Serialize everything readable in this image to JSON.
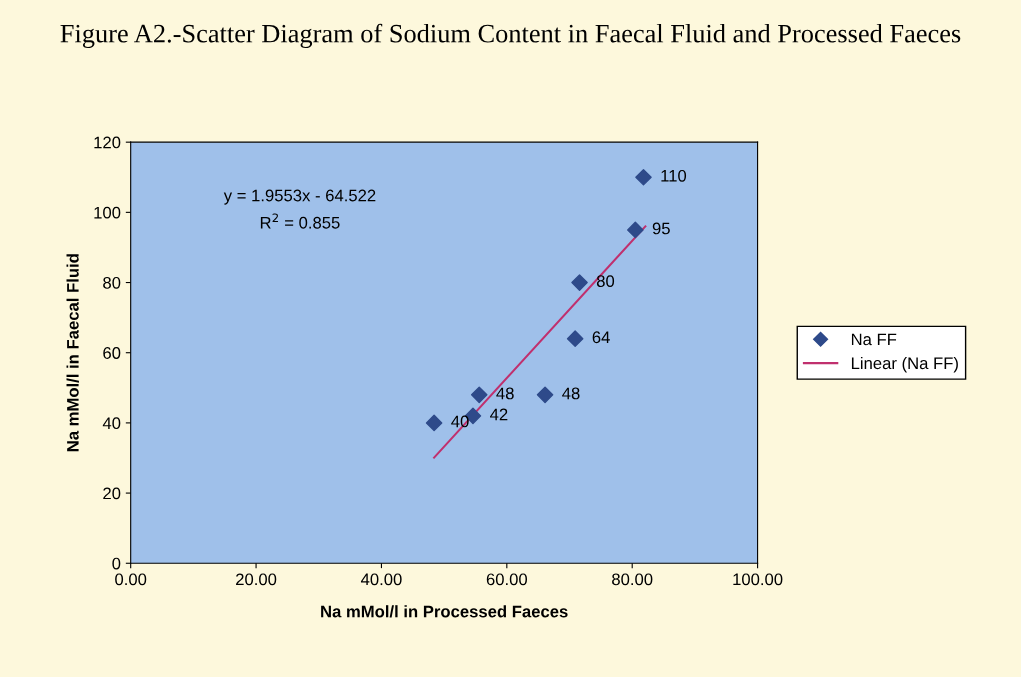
{
  "chart_data": {
    "type": "scatter",
    "title": "Figure A2.-Scatter Diagram of Sodium Content in Faecal Fluid and Processed Faeces",
    "xlabel": "Na mMol/l in Processed Faeces",
    "ylabel": "Na mMol/l in Faecal Fluid",
    "series": [
      {
        "name": "Na FF",
        "color": "#2e4a8a",
        "marker": "diamond",
        "x": [
          48.4,
          54.6,
          55.6,
          66.1,
          70.9,
          71.6,
          80.5,
          81.8
        ],
        "values": [
          40,
          42,
          48,
          48,
          64,
          80,
          95,
          110
        ],
        "data_labels": true
      },
      {
        "name": "Linear (Na FF)",
        "type": "line",
        "color": "#c0306e",
        "line_style": "solid",
        "x": [
          48.4,
          82.1
        ],
        "values": [
          30.1,
          96.0
        ]
      }
    ],
    "annotations": [
      "y = 1.9553x - 64.522",
      "R$^{2}$ = 0.855"
    ],
    "xlim": [
      0,
      100
    ],
    "xticks": [
      {
        "value": 0,
        "label": "0.00"
      },
      {
        "value": 20,
        "label": "20.00"
      },
      {
        "value": 40,
        "label": "40.00"
      },
      {
        "value": 60,
        "label": "60.00"
      },
      {
        "value": 80,
        "label": "80.00"
      },
      {
        "value": 100,
        "label": "100.00"
      }
    ],
    "ylim": [
      0,
      120
    ],
    "yticks": [
      0,
      20,
      40,
      60,
      80,
      100,
      120
    ],
    "grid": false,
    "legend": "right"
  }
}
